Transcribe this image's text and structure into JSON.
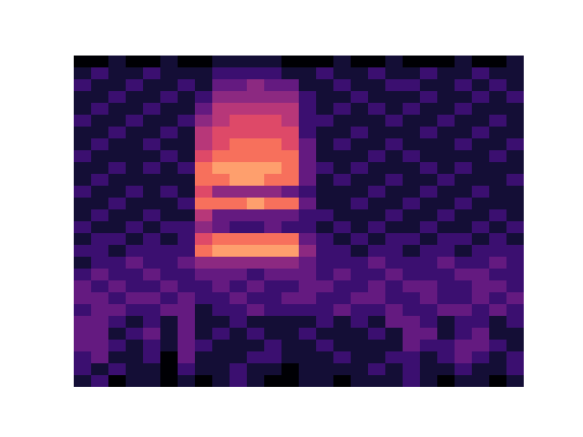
{
  "chart_data": {
    "type": "heatmap",
    "tick_labels": false,
    "zlim": [
      0,
      10
    ],
    "cells": [
      [
        0,
        0,
        1,
        0,
        0,
        1,
        0,
        0,
        1,
        1,
        1,
        1,
        0,
        0,
        0,
        1,
        0,
        0,
        1,
        0,
        0,
        0,
        1,
        0,
        0,
        1
      ],
      [
        1,
        2,
        1,
        1,
        2,
        1,
        1,
        1,
        2,
        2,
        2,
        2,
        1,
        1,
        2,
        1,
        1,
        2,
        1,
        1,
        2,
        1,
        1,
        2,
        1,
        1
      ],
      [
        2,
        1,
        1,
        2,
        1,
        1,
        2,
        1,
        3,
        3,
        4,
        3,
        3,
        1,
        1,
        2,
        1,
        1,
        2,
        2,
        1,
        1,
        2,
        1,
        2,
        1
      ],
      [
        1,
        1,
        2,
        1,
        1,
        2,
        1,
        2,
        4,
        4,
        4,
        4,
        4,
        2,
        1,
        1,
        2,
        1,
        1,
        1,
        2,
        1,
        1,
        2,
        1,
        2
      ],
      [
        1,
        2,
        1,
        1,
        2,
        1,
        1,
        3,
        5,
        5,
        5,
        5,
        5,
        2,
        1,
        2,
        1,
        2,
        1,
        2,
        1,
        1,
        2,
        1,
        1,
        1
      ],
      [
        2,
        1,
        1,
        2,
        1,
        1,
        2,
        4,
        5,
        6,
        6,
        6,
        5,
        2,
        2,
        1,
        1,
        1,
        2,
        1,
        1,
        2,
        1,
        1,
        2,
        1
      ],
      [
        1,
        1,
        2,
        1,
        1,
        2,
        1,
        5,
        6,
        6,
        6,
        6,
        6,
        2,
        1,
        1,
        2,
        1,
        1,
        1,
        2,
        1,
        1,
        2,
        1,
        1
      ],
      [
        1,
        2,
        1,
        1,
        2,
        1,
        1,
        5,
        6,
        7,
        7,
        7,
        6,
        3,
        1,
        2,
        1,
        1,
        2,
        1,
        1,
        1,
        2,
        1,
        1,
        2
      ],
      [
        2,
        1,
        1,
        1,
        1,
        2,
        1,
        6,
        7,
        7,
        7,
        7,
        7,
        3,
        1,
        1,
        1,
        2,
        1,
        2,
        1,
        1,
        1,
        1,
        2,
        1
      ],
      [
        1,
        1,
        2,
        1,
        2,
        1,
        2,
        7,
        8,
        8,
        8,
        8,
        7,
        3,
        2,
        1,
        2,
        1,
        1,
        1,
        2,
        1,
        2,
        1,
        1,
        1
      ],
      [
        1,
        2,
        1,
        1,
        1,
        1,
        1,
        7,
        7,
        8,
        8,
        7,
        7,
        3,
        1,
        2,
        1,
        1,
        2,
        1,
        1,
        2,
        1,
        1,
        1,
        2
      ],
      [
        2,
        1,
        1,
        2,
        1,
        2,
        1,
        6,
        4,
        4,
        4,
        4,
        3,
        2,
        1,
        1,
        1,
        2,
        1,
        1,
        2,
        1,
        1,
        2,
        1,
        1
      ],
      [
        1,
        1,
        2,
        1,
        1,
        1,
        2,
        7,
        7,
        7,
        8,
        7,
        7,
        3,
        1,
        1,
        2,
        1,
        1,
        2,
        1,
        1,
        2,
        1,
        1,
        1
      ],
      [
        1,
        2,
        1,
        1,
        2,
        1,
        1,
        5,
        3,
        3,
        3,
        3,
        3,
        2,
        2,
        1,
        1,
        1,
        2,
        1,
        1,
        2,
        1,
        1,
        2,
        1
      ],
      [
        2,
        1,
        1,
        2,
        1,
        2,
        2,
        4,
        3,
        2,
        2,
        3,
        2,
        2,
        1,
        2,
        1,
        2,
        1,
        1,
        2,
        1,
        1,
        2,
        1,
        2
      ],
      [
        1,
        2,
        2,
        1,
        2,
        1,
        2,
        6,
        7,
        7,
        7,
        7,
        7,
        3,
        2,
        1,
        2,
        1,
        2,
        2,
        1,
        2,
        2,
        1,
        2,
        1
      ],
      [
        2,
        2,
        1,
        2,
        2,
        2,
        2,
        7,
        8,
        8,
        8,
        8,
        8,
        4,
        2,
        2,
        1,
        2,
        2,
        1,
        2,
        2,
        1,
        2,
        2,
        2
      ],
      [
        1,
        2,
        2,
        3,
        2,
        2,
        3,
        4,
        4,
        4,
        4,
        4,
        4,
        3,
        2,
        2,
        2,
        3,
        2,
        2,
        2,
        3,
        2,
        2,
        3,
        2
      ],
      [
        2,
        3,
        2,
        2,
        3,
        2,
        2,
        3,
        3,
        3,
        2,
        3,
        3,
        3,
        2,
        3,
        2,
        2,
        3,
        2,
        2,
        2,
        3,
        3,
        2,
        2
      ],
      [
        3,
        2,
        3,
        2,
        2,
        3,
        2,
        2,
        3,
        2,
        3,
        2,
        2,
        3,
        3,
        2,
        2,
        3,
        2,
        3,
        3,
        2,
        2,
        3,
        3,
        2
      ],
      [
        3,
        3,
        2,
        3,
        3,
        2,
        3,
        2,
        2,
        3,
        2,
        2,
        3,
        3,
        2,
        2,
        3,
        3,
        2,
        2,
        3,
        2,
        2,
        3,
        2,
        3
      ],
      [
        2,
        3,
        3,
        2,
        2,
        3,
        3,
        1,
        2,
        2,
        3,
        2,
        2,
        2,
        2,
        3,
        2,
        2,
        3,
        2,
        2,
        3,
        3,
        2,
        3,
        2
      ],
      [
        3,
        3,
        2,
        1,
        2,
        1,
        3,
        1,
        1,
        2,
        1,
        1,
        1,
        1,
        2,
        1,
        2,
        1,
        3,
        3,
        2,
        1,
        2,
        2,
        1,
        2
      ],
      [
        3,
        3,
        1,
        2,
        3,
        1,
        3,
        1,
        2,
        1,
        2,
        1,
        1,
        2,
        1,
        1,
        1,
        2,
        1,
        3,
        3,
        1,
        2,
        3,
        1,
        1
      ],
      [
        3,
        3,
        2,
        1,
        2,
        1,
        3,
        2,
        1,
        1,
        1,
        2,
        1,
        1,
        2,
        1,
        1,
        1,
        1,
        3,
        2,
        2,
        3,
        3,
        2,
        1
      ],
      [
        2,
        3,
        1,
        1,
        2,
        0,
        3,
        1,
        1,
        1,
        2,
        2,
        1,
        1,
        1,
        2,
        1,
        1,
        2,
        2,
        1,
        2,
        3,
        2,
        1,
        2
      ],
      [
        2,
        1,
        2,
        1,
        1,
        0,
        2,
        1,
        1,
        2,
        1,
        1,
        0,
        1,
        1,
        1,
        1,
        2,
        1,
        2,
        1,
        1,
        2,
        1,
        1,
        2
      ],
      [
        1,
        2,
        0,
        1,
        1,
        0,
        1,
        0,
        1,
        2,
        1,
        0,
        0,
        1,
        1,
        0,
        1,
        1,
        1,
        2,
        1,
        0,
        1,
        1,
        0,
        1
      ]
    ]
  }
}
